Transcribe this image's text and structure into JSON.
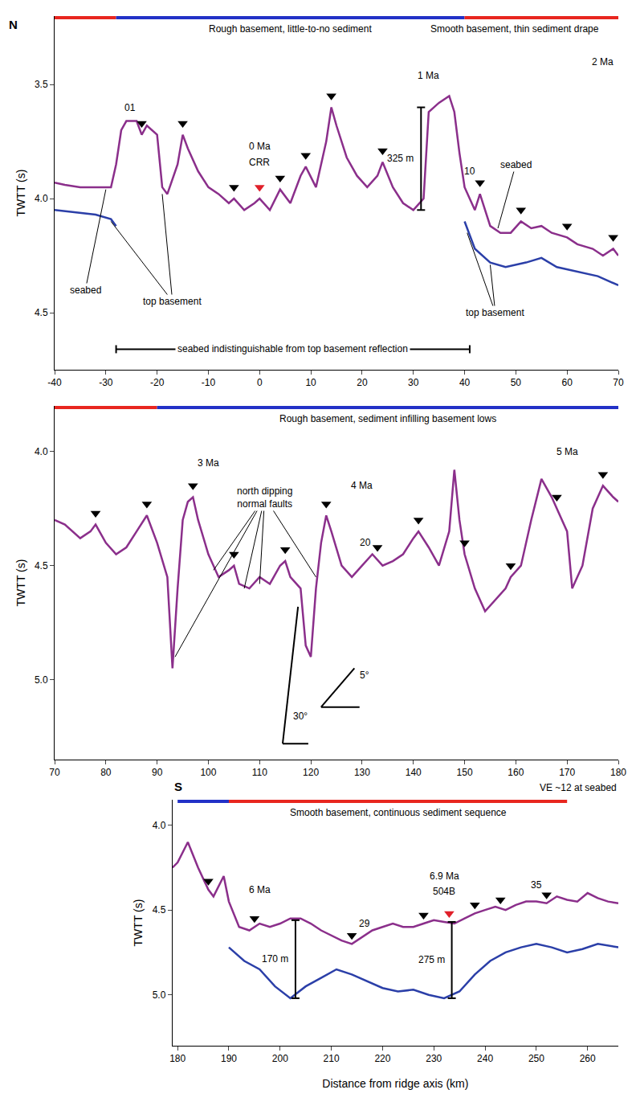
{
  "chart_data": [
    {
      "type": "line",
      "ylabel": "TWTT (s)",
      "xlim": [
        -40,
        70
      ],
      "xticks": [
        -40,
        -30,
        -20,
        -10,
        0,
        10,
        20,
        30,
        40,
        50,
        60,
        70
      ],
      "ylim": [
        4.75,
        3.2
      ],
      "yticks": [
        {
          "value": 3.5,
          "label": "3.5"
        },
        {
          "value": 4.0,
          "label": "4.0"
        },
        {
          "value": 4.5,
          "label": "4.5"
        }
      ],
      "corner_labels": {
        "left": "N"
      },
      "sections": [
        {
          "x0": -40,
          "x1": -28,
          "color": "#e8261f"
        },
        {
          "x0": -28,
          "x1": 40,
          "color": "#2231c7",
          "text": "Rough basement, little-to-no sediment"
        },
        {
          "x0": 40,
          "x1": 70,
          "color": "#e8261f",
          "text": "Smooth basement, thin sediment drape"
        }
      ],
      "series": [
        {
          "color": "#8b2f8b",
          "x": [
            -40,
            -38,
            -35,
            -32,
            -29,
            -28,
            -27,
            -26,
            -24,
            -23,
            -22,
            -20,
            -19,
            -18,
            -16,
            -15,
            -14,
            -12,
            -10,
            -8,
            -6,
            -5,
            -3,
            -1,
            0,
            2,
            4,
            6,
            8,
            9,
            11,
            13,
            14,
            15,
            17,
            19,
            21,
            23,
            24,
            26,
            28,
            30,
            32,
            33,
            35,
            37,
            38,
            39,
            40,
            42,
            43,
            45,
            47,
            49,
            51,
            53,
            55,
            57,
            60,
            62,
            65,
            67,
            69,
            70
          ],
          "values": [
            3.93,
            3.94,
            3.95,
            3.95,
            3.95,
            3.85,
            3.7,
            3.66,
            3.66,
            3.72,
            3.68,
            3.72,
            3.95,
            3.98,
            3.85,
            3.72,
            3.78,
            3.88,
            3.95,
            3.98,
            4.02,
            4.0,
            4.05,
            4.02,
            4.0,
            4.05,
            3.96,
            4.02,
            3.9,
            3.86,
            3.95,
            3.75,
            3.6,
            3.68,
            3.82,
            3.9,
            3.95,
            3.9,
            3.84,
            3.95,
            4.02,
            4.05,
            4.0,
            3.62,
            3.58,
            3.55,
            3.62,
            3.8,
            3.95,
            4.05,
            3.98,
            4.12,
            4.15,
            4.15,
            4.1,
            4.13,
            4.12,
            4.15,
            4.17,
            4.2,
            4.22,
            4.25,
            4.22,
            4.25
          ]
        },
        {
          "color": "#2b3fa8",
          "x": [
            -40,
            -36,
            -32,
            -29,
            -28,
            6,
            40,
            42,
            45,
            48,
            52,
            55,
            58,
            62,
            66,
            70
          ],
          "values": [
            4.05,
            4.06,
            4.07,
            4.09,
            4.12,
            null,
            4.1,
            4.22,
            4.28,
            4.3,
            4.28,
            4.26,
            4.3,
            4.32,
            4.34,
            4.38
          ]
        },
        {
          "type": "scatter",
          "marker": "triangle-down",
          "x": [
            -23,
            -15,
            -5,
            0,
            4,
            9,
            14,
            24,
            43,
            51,
            60,
            69
          ],
          "values": [
            3.67,
            3.67,
            3.95,
            3.95,
            3.91,
            3.81,
            3.55,
            3.79,
            3.93,
            4.05,
            4.12,
            4.17
          ],
          "colors": [
            "#000000",
            "#000000",
            "#000000",
            "#e0202a",
            "#000000",
            "#000000",
            "#000000",
            "#000000",
            "#000000",
            "#000000",
            "#000000",
            "#000000"
          ]
        }
      ],
      "annotations": [
        {
          "text": "01",
          "x": -25.3,
          "y": 3.6
        },
        {
          "text": "0 Ma",
          "x": 0,
          "y": 3.77
        },
        {
          "text": "CRR",
          "x": 0,
          "y": 3.84
        },
        {
          "text": "1 Ma",
          "x": 33,
          "y": 3.46
        },
        {
          "text": "2 Ma",
          "x": 67,
          "y": 3.4
        },
        {
          "text": "10",
          "x": 41,
          "y": 3.88
        },
        {
          "text": "seabed",
          "x": -34,
          "y": 4.4,
          "pointers": [
            [
              -30,
              3.96
            ]
          ]
        },
        {
          "text": "top basement",
          "x": -17,
          "y": 4.45,
          "pointers": [
            [
              -29,
              4.1
            ],
            [
              -19,
              3.98
            ]
          ]
        },
        {
          "text": "seabed",
          "x": 50,
          "y": 3.85,
          "pointers": [
            [
              46.5,
              4.13
            ]
          ]
        },
        {
          "text": "top basement",
          "x": 46,
          "y": 4.5,
          "pointers": [
            [
              40.5,
              4.15
            ],
            [
              45,
              4.29
            ]
          ]
        }
      ],
      "depth_bars": [
        {
          "text": "325 m",
          "x": 31.5,
          "y0": 3.6,
          "y1": 4.05
        }
      ],
      "range_lines": [
        {
          "text": "seabed indistinguishable from top basement reflection",
          "x0": -28,
          "x1": 41,
          "y": 4.66
        }
      ]
    },
    {
      "type": "line",
      "ylabel": "TWTT (s)",
      "xlim": [
        70,
        180
      ],
      "xticks": [
        70,
        80,
        90,
        100,
        110,
        120,
        130,
        140,
        150,
        160,
        170,
        180
      ],
      "ylim": [
        5.35,
        3.8
      ],
      "yticks": [
        {
          "value": 4.0,
          "label": "4.0"
        },
        {
          "value": 4.5,
          "label": "4.5"
        },
        {
          "value": 5.0,
          "label": "5.0"
        }
      ],
      "sections": [
        {
          "x0": 70,
          "x1": 90,
          "color": "#e8261f"
        },
        {
          "x0": 90,
          "x1": 180,
          "color": "#2231c7",
          "text": "Rough basement, sediment infilling basement lows"
        }
      ],
      "series": [
        {
          "color": "#8b2f8b",
          "x": [
            70,
            72,
            75,
            77,
            78,
            80,
            82,
            84,
            86,
            88,
            90,
            92,
            93,
            94,
            95,
            96,
            97,
            98,
            100,
            102,
            104,
            105,
            106,
            108,
            110,
            112,
            114,
            115,
            116,
            118,
            119,
            120,
            121,
            122,
            123,
            124,
            126,
            128,
            130,
            132,
            134,
            136,
            138,
            140,
            141,
            143,
            145,
            147,
            148,
            149,
            150,
            152,
            154,
            156,
            158,
            159,
            161,
            163,
            165,
            167,
            168,
            170,
            171,
            173,
            175,
            177,
            179,
            180
          ],
          "values": [
            4.3,
            4.32,
            4.38,
            4.35,
            4.32,
            4.4,
            4.45,
            4.42,
            4.35,
            4.28,
            4.4,
            4.55,
            4.95,
            4.6,
            4.3,
            4.22,
            4.2,
            4.3,
            4.45,
            4.55,
            4.52,
            4.5,
            4.58,
            4.6,
            4.55,
            4.58,
            4.5,
            4.48,
            4.55,
            4.6,
            4.85,
            4.9,
            4.6,
            4.4,
            4.28,
            4.35,
            4.5,
            4.55,
            4.5,
            4.45,
            4.5,
            4.48,
            4.45,
            4.38,
            4.35,
            4.42,
            4.5,
            4.35,
            4.08,
            4.3,
            4.45,
            4.6,
            4.7,
            4.65,
            4.6,
            4.55,
            4.5,
            4.3,
            4.12,
            4.2,
            4.25,
            4.35,
            4.6,
            4.5,
            4.25,
            4.15,
            4.2,
            4.22
          ]
        },
        {
          "type": "scatter",
          "marker": "triangle-down",
          "x": [
            78,
            88,
            97,
            105,
            115,
            123,
            133,
            141,
            150,
            159,
            168,
            177
          ],
          "values": [
            4.27,
            4.23,
            4.15,
            4.45,
            4.43,
            4.23,
            4.42,
            4.3,
            4.4,
            4.5,
            4.2,
            4.1
          ],
          "colors": [
            "#000000",
            "#000000",
            "#000000",
            "#000000",
            "#000000",
            "#000000",
            "#000000",
            "#000000",
            "#000000",
            "#000000",
            "#000000",
            "#000000"
          ]
        }
      ],
      "annotations": [
        {
          "text": "3 Ma",
          "x": 100,
          "y": 4.05
        },
        {
          "text": "4 Ma",
          "x": 130,
          "y": 4.15
        },
        {
          "text": "5 Ma",
          "x": 170,
          "y": 4.0
        },
        {
          "text": "20",
          "x": 130.6,
          "y": 4.4
        },
        {
          "text": [
            "north dipping",
            "normal faults"
          ],
          "x": 111,
          "y": 4.2,
          "pointers": [
            [
              93.5,
              4.9
            ],
            [
              101,
              4.52
            ],
            [
              107,
              4.6
            ],
            [
              110,
              4.58
            ],
            [
              121,
              4.55
            ]
          ]
        }
      ],
      "angle_marks": [
        {
          "text": "30°",
          "x": 116.3,
          "y": 5.16,
          "vertex": [
            114.5,
            5.28
          ],
          "ends": [
            [
              117.5,
              4.68
            ],
            [
              119.5,
              5.28
            ]
          ]
        },
        {
          "text": "5°",
          "x": 129.2,
          "y": 4.98,
          "vertex": [
            122,
            5.12
          ],
          "ends": [
            [
              128.5,
              4.95
            ],
            [
              129.5,
              5.12
            ]
          ]
        }
      ]
    },
    {
      "type": "line",
      "ylabel": "TWTT (s)",
      "xlabel": "Distance from ridge axis (km)",
      "xlim": [
        179,
        266
      ],
      "xticks": [
        180,
        190,
        200,
        210,
        220,
        230,
        240,
        250,
        260
      ],
      "ylim": [
        5.3,
        3.85
      ],
      "yticks": [
        {
          "value": 4.0,
          "label": "4.0"
        },
        {
          "value": 4.5,
          "label": "4.5"
        },
        {
          "value": 5.0,
          "label": "5.0"
        }
      ],
      "corner_labels": {
        "left": "S",
        "right": "VE ~12 at seabed"
      },
      "sections": [
        {
          "x0": 180,
          "x1": 190,
          "color": "#2231c7"
        },
        {
          "x0": 190,
          "x1": 256,
          "color": "#e8261f",
          "text": "Smooth basement, continuous sediment sequence"
        }
      ],
      "series": [
        {
          "color": "#8b2f8b",
          "x": [
            179,
            180,
            182,
            184,
            186,
            187,
            189,
            190,
            192,
            194,
            196,
            198,
            200,
            202,
            204,
            206,
            208,
            210,
            212,
            214,
            216,
            218,
            220,
            222,
            224,
            226,
            228,
            230,
            232,
            234,
            236,
            238,
            240,
            242,
            244,
            246,
            248,
            250,
            252,
            254,
            256,
            258,
            260,
            262,
            264,
            266
          ],
          "values": [
            4.25,
            4.22,
            4.1,
            4.25,
            4.38,
            4.42,
            4.3,
            4.45,
            4.6,
            4.62,
            4.58,
            4.6,
            4.58,
            4.55,
            4.55,
            4.58,
            4.62,
            4.65,
            4.68,
            4.7,
            4.66,
            4.62,
            4.6,
            4.58,
            4.6,
            4.6,
            4.58,
            4.56,
            4.57,
            4.58,
            4.55,
            4.52,
            4.5,
            4.48,
            4.5,
            4.47,
            4.45,
            4.45,
            4.46,
            4.42,
            4.44,
            4.45,
            4.4,
            4.43,
            4.45,
            4.46
          ]
        },
        {
          "color": "#2b3fa8",
          "x": [
            190,
            193,
            196,
            199,
            202,
            205,
            208,
            211,
            214,
            217,
            220,
            223,
            226,
            229,
            232,
            235,
            238,
            241,
            244,
            247,
            250,
            253,
            256,
            259,
            262,
            266
          ],
          "values": [
            4.72,
            4.8,
            4.85,
            4.95,
            5.02,
            4.95,
            4.9,
            4.85,
            4.88,
            4.92,
            4.96,
            4.98,
            4.97,
            5.0,
            5.02,
            4.98,
            4.88,
            4.8,
            4.75,
            4.72,
            4.7,
            4.72,
            4.75,
            4.73,
            4.7,
            4.72
          ]
        },
        {
          "type": "scatter",
          "marker": "triangle-down",
          "x": [
            186,
            195,
            214,
            228,
            233,
            238,
            243,
            252
          ],
          "values": [
            4.33,
            4.55,
            4.65,
            4.53,
            4.52,
            4.47,
            4.44,
            4.41
          ],
          "colors": [
            "#000000",
            "#000000",
            "#000000",
            "#000000",
            "#e0202a",
            "#000000",
            "#000000",
            "#000000"
          ]
        }
      ],
      "annotations": [
        {
          "text": "6 Ma",
          "x": 196,
          "y": 4.38
        },
        {
          "text": "6.9 Ma",
          "x": 232,
          "y": 4.3
        },
        {
          "text": "504B",
          "x": 232,
          "y": 4.39
        },
        {
          "text": "29",
          "x": 216.5,
          "y": 4.58
        },
        {
          "text": "35",
          "x": 250,
          "y": 4.35
        }
      ],
      "depth_bars": [
        {
          "text": "170 m",
          "x": 203,
          "y0": 4.56,
          "y1": 5.02
        },
        {
          "text": "275 m",
          "x": 233.5,
          "y0": 4.57,
          "y1": 5.02
        }
      ]
    }
  ]
}
